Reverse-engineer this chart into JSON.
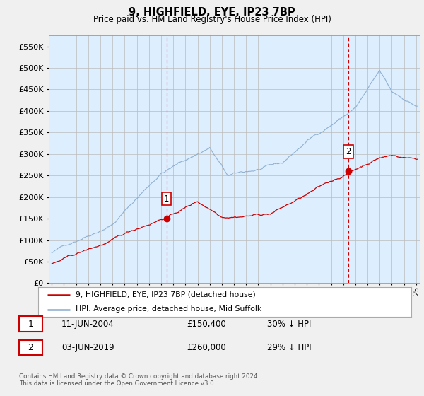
{
  "title": "9, HIGHFIELD, EYE, IP23 7BP",
  "subtitle": "Price paid vs. HM Land Registry's House Price Index (HPI)",
  "legend_line1": "9, HIGHFIELD, EYE, IP23 7BP (detached house)",
  "legend_line2": "HPI: Average price, detached house, Mid Suffolk",
  "sale1_date": "11-JUN-2004",
  "sale1_price": "£150,400",
  "sale1_hpi": "30% ↓ HPI",
  "sale1_year": 2004.45,
  "sale1_value": 150400,
  "sale2_date": "03-JUN-2019",
  "sale2_price": "£260,000",
  "sale2_hpi": "29% ↓ HPI",
  "sale2_year": 2019.43,
  "sale2_value": 260000,
  "footer": "Contains HM Land Registry data © Crown copyright and database right 2024.\nThis data is licensed under the Open Government Licence v3.0.",
  "red_color": "#cc0000",
  "blue_color": "#88aacc",
  "plot_bg_color": "#ddeeff",
  "background_color": "#f0f0f0",
  "grid_color": "#bbbbbb",
  "ylim": [
    0,
    575000
  ],
  "yticks": [
    0,
    50000,
    100000,
    150000,
    200000,
    250000,
    300000,
    350000,
    400000,
    450000,
    500000,
    550000
  ],
  "xmin": 1994.75,
  "xmax": 2025.3
}
